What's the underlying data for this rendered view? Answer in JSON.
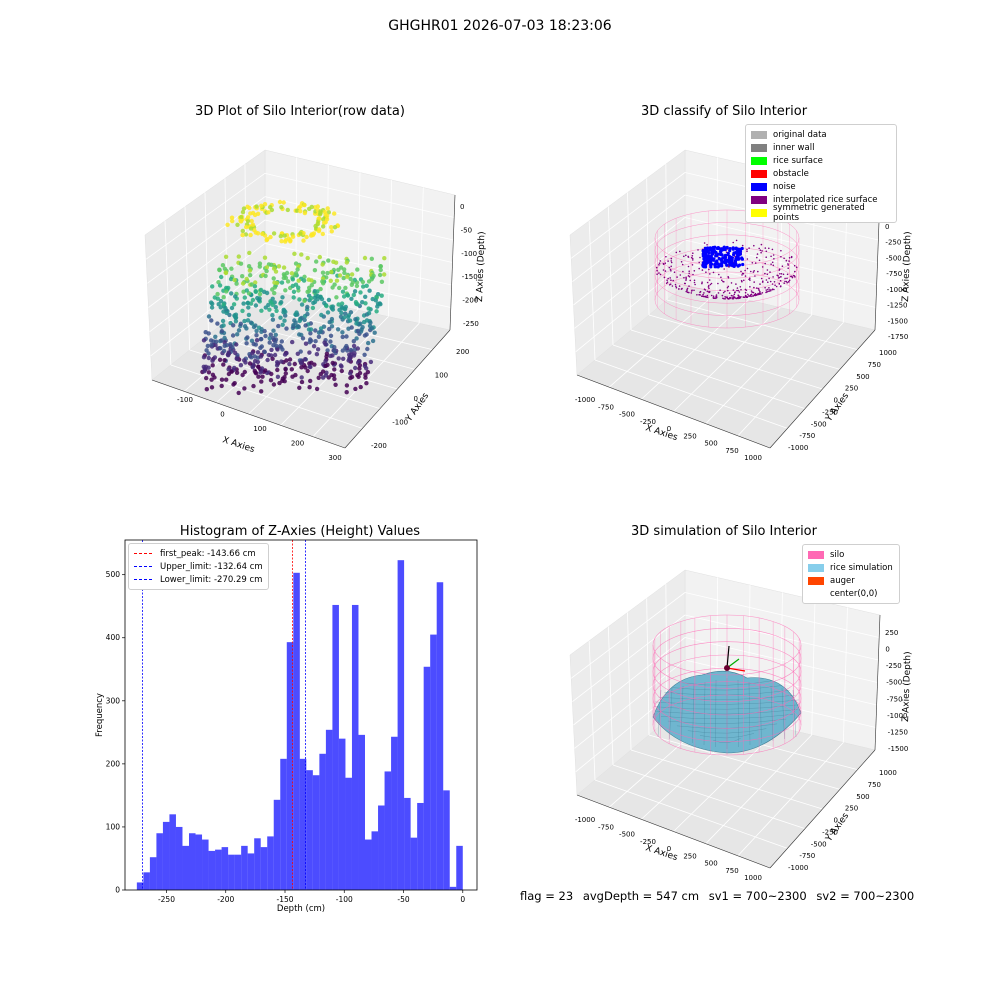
{
  "suptitle": "GHGHR01 2026-07-03 18:23:06",
  "panels": {
    "raw": {
      "title": "3D Plot of Silo Interior(row data)",
      "xlabel": "X Axies",
      "ylabel": "Y Axies",
      "zlabel": "Z Axies (Depth)",
      "xticks": [
        "-100",
        "0",
        "100",
        "200",
        "300"
      ],
      "yticks": [
        "-200",
        "-100",
        "0",
        "100",
        "200"
      ],
      "zticks": [
        "0",
        "-50",
        "-100",
        "-150",
        "-200",
        "-250"
      ]
    },
    "classify": {
      "title": "3D classify of Silo Interior",
      "xlabel": "X Axies",
      "ylabel": "Y Axies",
      "zlabel": "Z Axies (Depth)",
      "xticks": [
        "-1000",
        "-750",
        "-500",
        "-250",
        "0",
        "250",
        "500",
        "750",
        "1000"
      ],
      "yticks": [
        "-1000",
        "-750",
        "-500",
        "-250",
        "0",
        "250",
        "500",
        "750",
        "1000"
      ],
      "zticks": [
        "0",
        "-250",
        "-500",
        "-750",
        "-1000",
        "-1250",
        "-1500",
        "-1750"
      ],
      "legend": [
        {
          "label": "original data",
          "color": "#b0b0b0"
        },
        {
          "label": "inner wall",
          "color": "#808080"
        },
        {
          "label": "rice surface",
          "color": "#00ff00"
        },
        {
          "label": "obstacle",
          "color": "#ff0000"
        },
        {
          "label": "noise",
          "color": "#0000ff"
        },
        {
          "label": "interpolated rice surface",
          "color": "#800080"
        },
        {
          "label": "symmetric generated points",
          "color": "#ffff00"
        }
      ]
    },
    "simulation": {
      "title": "3D simulation of Silo Interior",
      "xlabel": "X Axies",
      "ylabel": "Y Axies",
      "zlabel": "Z Axies (Depth)",
      "xticks": [
        "-1000",
        "-750",
        "-500",
        "-250",
        "0",
        "250",
        "500",
        "750",
        "1000"
      ],
      "yticks": [
        "-1000",
        "-750",
        "-500",
        "-250",
        "0",
        "250",
        "500",
        "750",
        "1000"
      ],
      "zticks": [
        "250",
        "0",
        "-250",
        "-500",
        "-750",
        "-1000",
        "-1250",
        "-1500"
      ],
      "legend": [
        {
          "label": "silo",
          "color": "#ff69b4"
        },
        {
          "label": "rice simulation",
          "color": "#87ceeb"
        },
        {
          "label": "auger",
          "color": "#ff4500"
        },
        {
          "label": "center(0,0)",
          "color": "#ffffff"
        }
      ]
    }
  },
  "chart_data": {
    "type": "bar",
    "title": "Histogram of Z-Axies (Height) Values",
    "xlabel": "Depth (cm)",
    "ylabel": "Frequency",
    "xlim": [
      -285,
      12
    ],
    "ylim": [
      0,
      555
    ],
    "xticks": [
      -250,
      -200,
      -150,
      -100,
      -50,
      0
    ],
    "yticks": [
      0,
      100,
      200,
      300,
      400,
      500
    ],
    "bar_color": "#0000ff",
    "bin_start": -275,
    "bin_width": 5.5,
    "values": [
      12,
      28,
      52,
      90,
      108,
      120,
      100,
      70,
      90,
      88,
      80,
      62,
      64,
      68,
      56,
      56,
      70,
      58,
      82,
      68,
      85,
      143,
      208,
      393,
      503,
      208,
      190,
      182,
      216,
      254,
      452,
      240,
      178,
      452,
      246,
      80,
      93,
      134,
      188,
      243,
      523,
      146,
      83,
      138,
      354,
      405,
      488,
      158,
      5,
      70
    ],
    "vlines": [
      {
        "label": "first_peak: -143.66 cm",
        "x": -143.66,
        "color": "#ff0000"
      },
      {
        "label": "Upper_limit: -132.64 cm",
        "x": -132.64,
        "color": "#0000ff"
      },
      {
        "label": "Lower_limit: -270.29 cm",
        "x": -270.29,
        "color": "#0000ff"
      }
    ],
    "legend_position": "upper-left"
  },
  "footer": {
    "flag": "flag = 23",
    "avg_depth": "avgDepth = 547 cm",
    "sv1": "sv1 = 700~2300",
    "sv2": "sv2 = 700~2300"
  }
}
